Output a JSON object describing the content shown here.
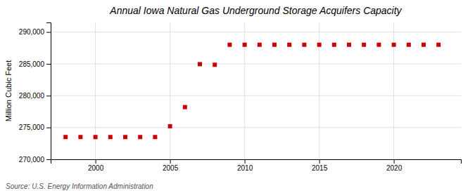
{
  "chart_data": {
    "type": "scatter",
    "title": "Annual Iowa Natural Gas Underground Storage Acquifers Capacity",
    "ylabel": "Million Cubic Feet",
    "source": "Source: U.S. Energy Information Administration",
    "x": [
      1998,
      1999,
      2000,
      2001,
      2002,
      2003,
      2004,
      2005,
      2006,
      2007,
      2008,
      2009,
      2010,
      2011,
      2012,
      2013,
      2014,
      2015,
      2016,
      2017,
      2018,
      2019,
      2020,
      2021,
      2022,
      2023
    ],
    "values": [
      273500,
      273500,
      273500,
      273500,
      273500,
      273500,
      273500,
      275200,
      278200,
      284950,
      284850,
      288000,
      288000,
      288000,
      288000,
      288000,
      288000,
      288000,
      288000,
      288000,
      288000,
      288000,
      288000,
      288000,
      288000,
      288000
    ],
    "color": "#cc0000",
    "marker": "square",
    "xlim": [
      1997.0,
      2024.5
    ],
    "xticks": [
      2000,
      2005,
      2010,
      2015,
      2020
    ],
    "ylim": [
      270000,
      291500
    ],
    "yticks": [
      {
        "value": 270000,
        "label": "270,000"
      },
      {
        "value": 275000,
        "label": "275,000"
      },
      {
        "value": 280000,
        "label": "280,000"
      },
      {
        "value": 285000,
        "label": "285,000"
      },
      {
        "value": 290000,
        "label": "290,000"
      }
    ],
    "grid": true
  }
}
